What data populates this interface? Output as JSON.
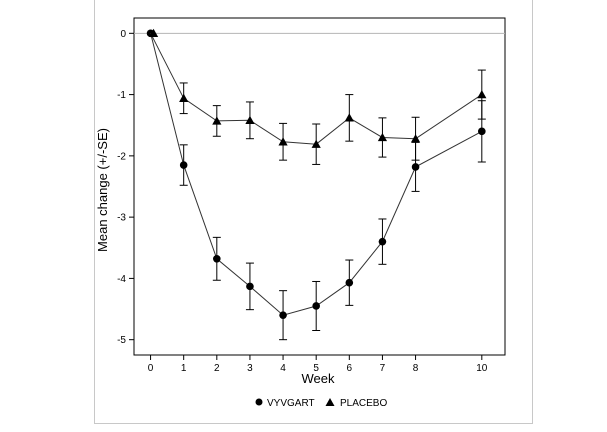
{
  "chart_data": {
    "type": "line",
    "title": "",
    "xlabel": "Week",
    "ylabel": "Mean change (+/-SE)",
    "xlim": [
      -0.5,
      10.7
    ],
    "ylim": [
      -5.25,
      0.25
    ],
    "x_ticks": [
      0,
      1,
      2,
      3,
      4,
      5,
      6,
      7,
      8,
      10
    ],
    "y_ticks": [
      0,
      -1,
      -2,
      -3,
      -4,
      -5
    ],
    "reference_line": 0,
    "legend_position": "bottom",
    "series": [
      {
        "name": "VYVGART",
        "marker": "circle",
        "x": [
          0,
          1,
          2,
          3,
          4,
          5,
          6,
          7,
          8,
          10
        ],
        "values": [
          0,
          -2.15,
          -3.68,
          -4.13,
          -4.6,
          -4.45,
          -4.07,
          -3.4,
          -2.18,
          -1.6
        ],
        "se": [
          0,
          0.33,
          0.35,
          0.38,
          0.4,
          0.4,
          0.37,
          0.37,
          0.4,
          0.5
        ]
      },
      {
        "name": "PLACEBO",
        "marker": "triangle",
        "x": [
          0,
          1,
          2,
          3,
          4,
          5,
          6,
          7,
          8,
          10
        ],
        "values": [
          0,
          -1.06,
          -1.43,
          -1.42,
          -1.77,
          -1.81,
          -1.38,
          -1.7,
          -1.72,
          -1.0
        ],
        "se": [
          0,
          0.25,
          0.25,
          0.3,
          0.3,
          0.33,
          0.38,
          0.32,
          0.35,
          0.4
        ]
      }
    ]
  }
}
